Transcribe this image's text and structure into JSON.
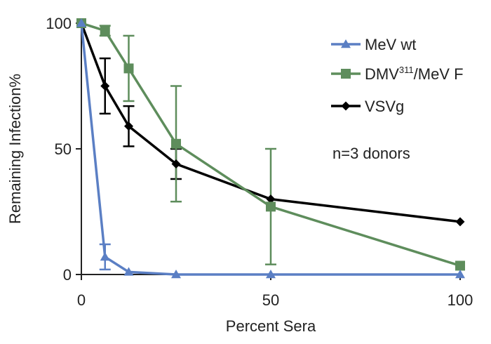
{
  "chart_data": {
    "type": "line",
    "title": "",
    "xlabel": "Percent Sera",
    "ylabel": "Remaining Infection%",
    "xlim": [
      0,
      100
    ],
    "ylim": [
      0,
      100
    ],
    "xticks": [
      0,
      50,
      100
    ],
    "yticks": [
      0,
      50,
      100
    ],
    "grid": false,
    "legend_position": "top-right",
    "annotation": "n=3 donors",
    "series": [
      {
        "name": "MeV wt",
        "legend_main": "MeV wt",
        "legend_sup": "",
        "legend_tail": "",
        "color": "#5b7fc4",
        "marker": "triangle",
        "x": [
          0,
          6.25,
          12.5,
          25,
          50,
          100
        ],
        "y": [
          100,
          7,
          1,
          0,
          0,
          0
        ],
        "err": [
          0,
          5,
          0,
          0,
          0,
          0
        ]
      },
      {
        "name": "DMV311/MeV F",
        "legend_main": "DMV",
        "legend_sup": "311",
        "legend_tail": "/MeV F",
        "color": "#5e8d5c",
        "marker": "square",
        "x": [
          0,
          6.25,
          12.5,
          25,
          50,
          100
        ],
        "y": [
          100,
          97,
          82,
          52,
          27,
          3.5
        ],
        "err": [
          0,
          2,
          13,
          23,
          23,
          0
        ]
      },
      {
        "name": "VSVg",
        "legend_main": "VSVg",
        "legend_sup": "",
        "legend_tail": "",
        "color": "#000000",
        "marker": "diamond",
        "x": [
          0,
          6.25,
          12.5,
          25,
          50,
          100
        ],
        "y": [
          100,
          75,
          59,
          44,
          30,
          21
        ],
        "err": [
          0,
          11,
          8,
          6,
          0,
          0
        ]
      }
    ]
  }
}
